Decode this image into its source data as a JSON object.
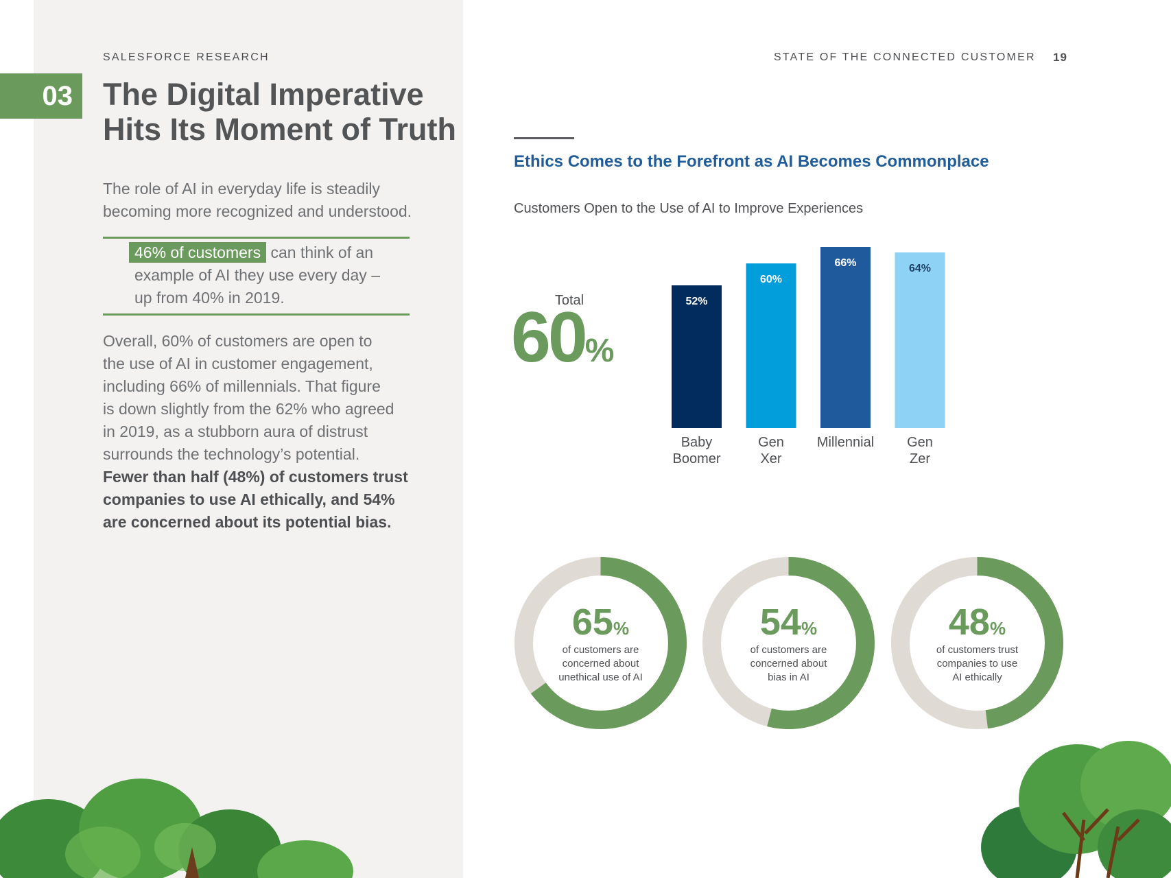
{
  "header": {
    "left_eyebrow": "SALESFORCE RESEARCH",
    "right_eyebrow": "STATE OF THE CONNECTED CUSTOMER",
    "page_number": "19"
  },
  "section": {
    "number": "03",
    "title_line1": "The Digital Imperative",
    "title_line2": "Hits Its Moment of Truth"
  },
  "intro": {
    "line1": "The role of AI in everyday life is steadily",
    "line2": "becoming more recognized and understood."
  },
  "callout": {
    "highlight": "46% of customers",
    "line1_rest": " can think of an",
    "line2": "example of AI they use every day –",
    "line3": "up from 40% in 2019."
  },
  "body": {
    "line1": "Overall, 60% of customers are open to",
    "line2": "the use of AI in customer engagement,",
    "line3": "including 66% of millennials. That figure",
    "line4": "is down slightly from the 62% who agreed",
    "line5": "in 2019, as a stubborn aura of distrust",
    "line6": "surrounds the technology’s potential.",
    "bold_line1": "Fewer than half (48%) of customers trust",
    "bold_line2": "companies to use AI ethically, and 54%",
    "bold_line3": "are concerned about its potential bias."
  },
  "chart_heading": "Ethics Comes to the Forefront as AI Becomes Commonplace",
  "chart_subtitle": "Customers Open to the Use of AI to Improve Experiences",
  "total": {
    "label": "Total",
    "value": "60",
    "unit": "%"
  },
  "chart_data": {
    "type": "bar",
    "title": "Customers Open to the Use of AI to Improve Experiences",
    "categories": [
      [
        "Baby",
        "Boomer"
      ],
      [
        "Gen",
        "Xer"
      ],
      [
        "Millennial"
      ],
      [
        "Gen",
        "Zer"
      ]
    ],
    "values": [
      52,
      60,
      66,
      64
    ],
    "value_labels": [
      "52%",
      "60%",
      "66%",
      "64%"
    ],
    "colors": [
      "#022b5e",
      "#029ddb",
      "#1f5a9c",
      "#8ed3f5"
    ],
    "label_colors": [
      "#ffffff",
      "#ffffff",
      "#ffffff",
      "#1f3f66"
    ],
    "ylim": [
      0,
      100
    ],
    "grid": false
  },
  "donuts": [
    {
      "value": 65,
      "number": "65",
      "unit": "%",
      "caption_line1": "of customers are",
      "caption_line2": "concerned about",
      "caption_line3": "unethical use of AI"
    },
    {
      "value": 54,
      "number": "54",
      "unit": "%",
      "caption_line1": "of customers are",
      "caption_line2": "concerned about",
      "caption_line3": "bias in AI"
    },
    {
      "value": 48,
      "number": "48",
      "unit": "%",
      "caption_line1": "of customers trust",
      "caption_line2": "companies to use",
      "caption_line3": "AI ethically"
    }
  ],
  "colors": {
    "accent_green": "#6a9a5c",
    "heading_blue": "#1f5c99",
    "donut_track": "#e0dad4",
    "panel_bg": "#f3f2f1"
  }
}
